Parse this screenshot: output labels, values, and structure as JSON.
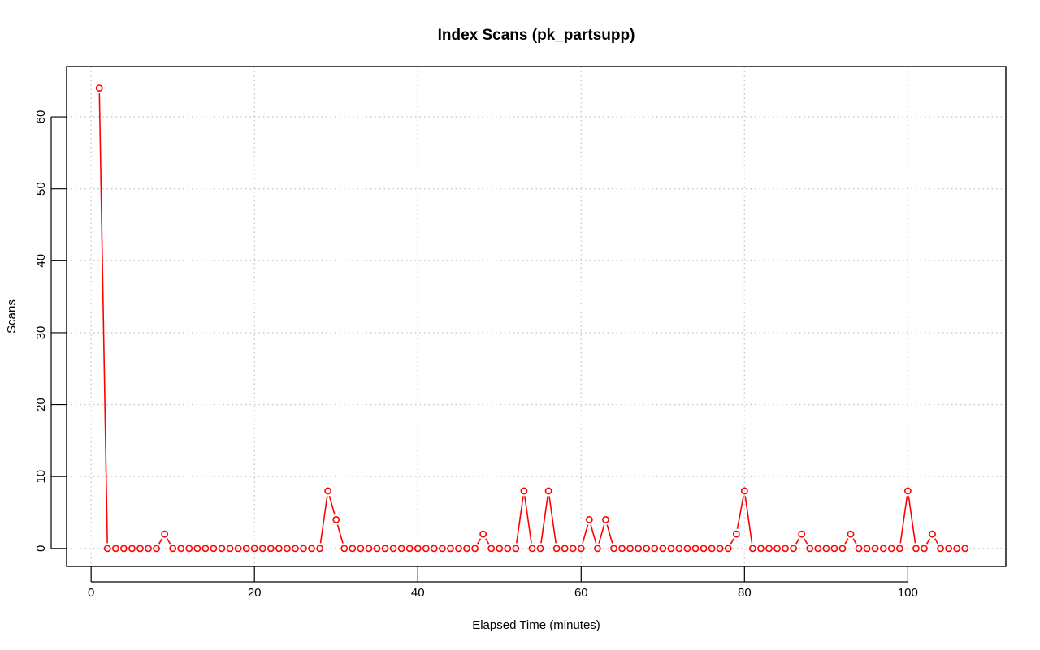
{
  "chart_data": {
    "type": "line",
    "title": "Index Scans (pk_partsupp)",
    "xlabel": "Elapsed Time (minutes)",
    "ylabel": "Scans",
    "xlim": [
      -3,
      112
    ],
    "ylim": [
      -2.5,
      67
    ],
    "x_ticks": [
      0,
      20,
      40,
      60,
      80,
      100
    ],
    "y_ticks": [
      0,
      10,
      20,
      30,
      40,
      50,
      60
    ],
    "grid": true,
    "line_color": "#ff0000",
    "marker": "open-circle",
    "series": [
      {
        "x": [
          1,
          2,
          3,
          4,
          5,
          6,
          7,
          8,
          9,
          10,
          11,
          12,
          13,
          14,
          15,
          16,
          17,
          18,
          19,
          20,
          21,
          22,
          23,
          24,
          25,
          26,
          27,
          28,
          29,
          30,
          31,
          32,
          33,
          34,
          35,
          36,
          37,
          38,
          39,
          40,
          41,
          42,
          43,
          44,
          45,
          46,
          47,
          48,
          49,
          50,
          51,
          52,
          53,
          54,
          55,
          56,
          57,
          58,
          59,
          60,
          61,
          62,
          63,
          64,
          65,
          66,
          67,
          68,
          69,
          70,
          71,
          72,
          73,
          74,
          75,
          76,
          77,
          78,
          79,
          80,
          81,
          82,
          83,
          84,
          85,
          86,
          87,
          88,
          89,
          90,
          91,
          92,
          93,
          94,
          95,
          96,
          97,
          98,
          99,
          100,
          101,
          102,
          103,
          104,
          105,
          106,
          107
        ],
        "values": [
          64,
          0,
          0,
          0,
          0,
          0,
          0,
          0,
          2,
          0,
          0,
          0,
          0,
          0,
          0,
          0,
          0,
          0,
          0,
          0,
          0,
          0,
          0,
          0,
          0,
          0,
          0,
          0,
          8,
          4,
          0,
          0,
          0,
          0,
          0,
          0,
          0,
          0,
          0,
          0,
          0,
          0,
          0,
          0,
          0,
          0,
          0,
          2,
          0,
          0,
          0,
          0,
          8,
          0,
          0,
          8,
          0,
          0,
          0,
          0,
          4,
          0,
          4,
          0,
          0,
          0,
          0,
          0,
          0,
          0,
          0,
          0,
          0,
          0,
          0,
          0,
          0,
          0,
          2,
          8,
          0,
          0,
          0,
          0,
          0,
          0,
          2,
          0,
          0,
          0,
          0,
          0,
          2,
          0,
          0,
          0,
          0,
          0,
          0,
          8,
          0,
          0,
          2,
          0,
          0,
          0,
          0
        ]
      }
    ]
  }
}
